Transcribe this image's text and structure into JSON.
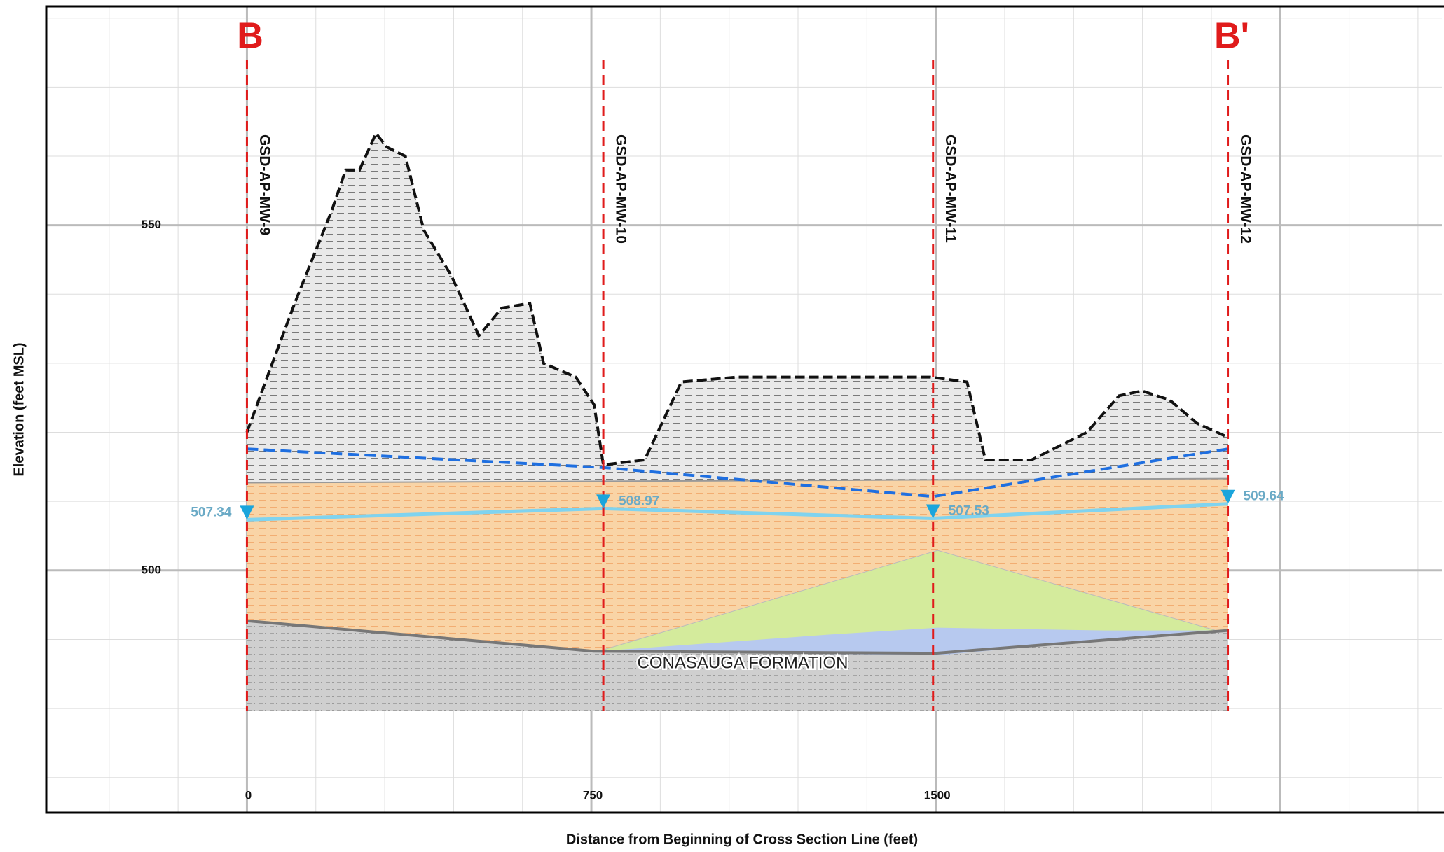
{
  "chart_data": {
    "type": "section",
    "xlabel": "Distance from Beginning of Cross Section Line (feet)",
    "ylabel": "Elevation (feet MSL)",
    "xlim": [
      -437,
      2602
    ],
    "ylim": [
      464.9,
      581.7
    ],
    "xticks": [
      0,
      750,
      1500
    ],
    "yticks": [
      500,
      550
    ],
    "x_major_grid": [
      0,
      750,
      1500,
      2250
    ],
    "x_minor_step": 150,
    "y_minor_step": 10,
    "section_labels": [
      "B",
      "B'"
    ],
    "annotation": "CONASAUGA FORMATION",
    "ground_surface": {
      "color": "#111111",
      "x": [
        0,
        44,
        104,
        184,
        215,
        245,
        281,
        305,
        345,
        385,
        445,
        505,
        555,
        616,
        646,
        716,
        756,
        776,
        866,
        946,
        1067,
        1488,
        1568,
        1608,
        1708,
        1829,
        1899,
        1949,
        2009,
        2069,
        2136
      ],
      "values": [
        520,
        528,
        538.7,
        552,
        558,
        558,
        563.3,
        561.3,
        560,
        549.3,
        542.7,
        534,
        538,
        538.7,
        530,
        528,
        524,
        515.3,
        516,
        527.3,
        528,
        528,
        527.3,
        516,
        516,
        520,
        525.3,
        526,
        524.7,
        521.3,
        519.3
      ]
    },
    "clay_top": {
      "x": [
        0,
        2136
      ],
      "values": [
        512.7,
        513.3
      ]
    },
    "bedrock_top": {
      "color": "#777777",
      "x": [
        0,
        755,
        1500,
        2136
      ],
      "values": [
        492.7,
        488.3,
        488,
        491.3
      ]
    },
    "bedrock_base": 479.6,
    "green_lens": {
      "color": "#d4eb9c",
      "x": [
        766,
        1504,
        2110
      ],
      "y": [
        488.3,
        502.9,
        491.3
      ]
    },
    "blue_lens": {
      "color": "#b7c9ef",
      "x": [
        766,
        1267,
        1504,
        1870,
        2110,
        1504
      ],
      "y": [
        488.3,
        490.7,
        491.7,
        491.3,
        491.3,
        487.7
      ]
    },
    "dashed_line": {
      "color": "#1f6fe0",
      "x": [
        0,
        776,
        1494,
        2136
      ],
      "values": [
        517.6,
        514.9,
        510.7,
        517.6
      ]
    },
    "wells": {
      "names": [
        "GSD-AP-MW-9",
        "GSD-AP-MW-10",
        "GSD-AP-MW-11",
        "GSD-AP-MW-12"
      ],
      "x": [
        0,
        776,
        1494,
        2136
      ],
      "water_levels": [
        507.34,
        508.97,
        507.53,
        509.64
      ],
      "water_color": "#7fd3ef",
      "marker_color": "#1aa5dc",
      "label_color": "#6aaac6",
      "well_color": "#e01b1b"
    }
  }
}
